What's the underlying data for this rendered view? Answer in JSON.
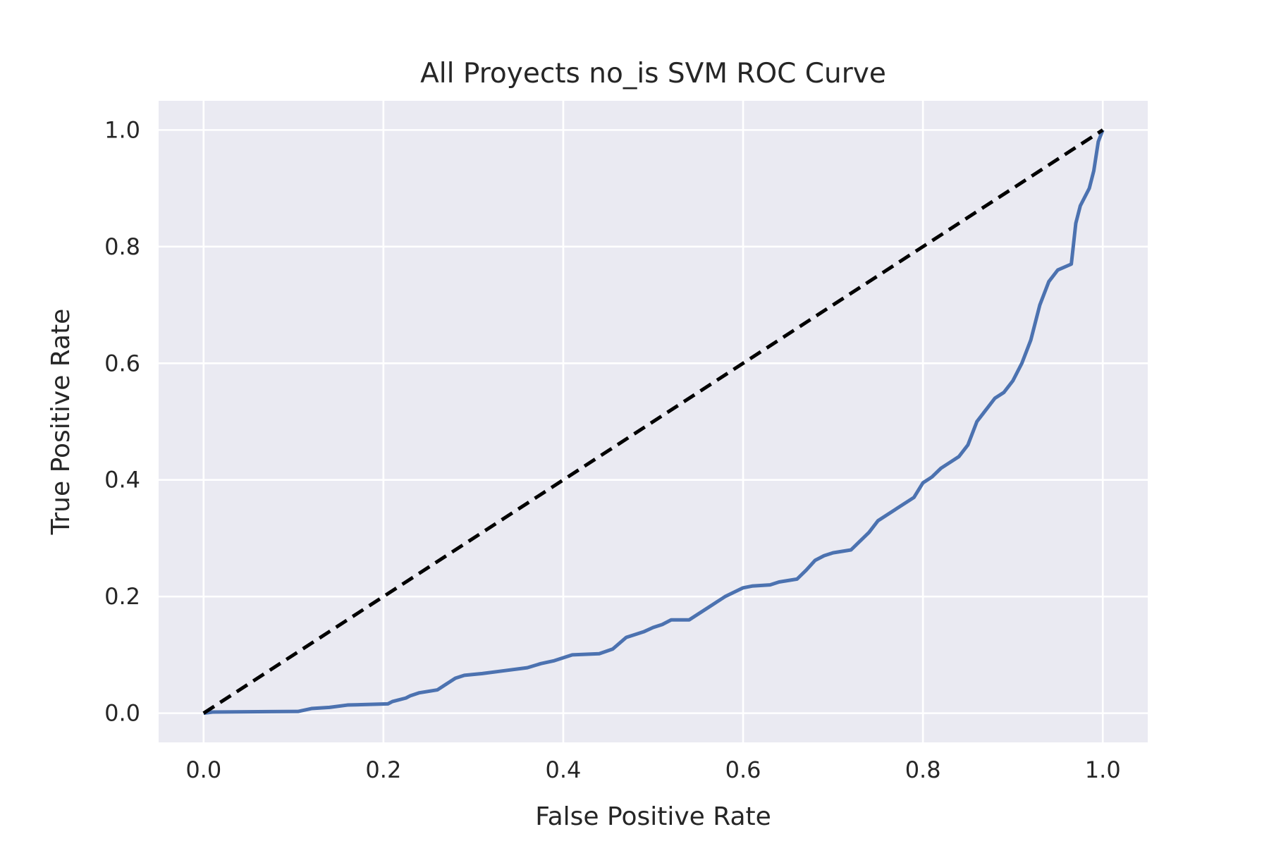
{
  "chart_data": {
    "type": "line",
    "title": "All Proyects no_is SVM ROC Curve",
    "xlabel": "False Positive Rate",
    "ylabel": "True Positive Rate",
    "xlim": [
      -0.05,
      1.05
    ],
    "ylim": [
      -0.05,
      1.05
    ],
    "xticks": [
      0.0,
      0.2,
      0.4,
      0.6,
      0.8,
      1.0
    ],
    "xtick_labels": [
      "0.0",
      "0.2",
      "0.4",
      "0.6",
      "0.8",
      "1.0"
    ],
    "yticks": [
      0.0,
      0.2,
      0.4,
      0.6,
      0.8,
      1.0
    ],
    "ytick_labels": [
      "0.0",
      "0.2",
      "0.4",
      "0.6",
      "0.8",
      "1.0"
    ],
    "grid": true,
    "series": [
      {
        "style": "solid",
        "color": "#4c72b0",
        "x": [
          0.0,
          0.01,
          0.105,
          0.12,
          0.14,
          0.16,
          0.205,
          0.21,
          0.225,
          0.23,
          0.24,
          0.26,
          0.27,
          0.28,
          0.29,
          0.31,
          0.33,
          0.36,
          0.375,
          0.39,
          0.4,
          0.41,
          0.44,
          0.455,
          0.47,
          0.48,
          0.49,
          0.5,
          0.51,
          0.52,
          0.54,
          0.55,
          0.56,
          0.57,
          0.58,
          0.6,
          0.61,
          0.63,
          0.64,
          0.66,
          0.67,
          0.68,
          0.69,
          0.7,
          0.72,
          0.73,
          0.74,
          0.75,
          0.77,
          0.79,
          0.8,
          0.81,
          0.82,
          0.83,
          0.84,
          0.85,
          0.86,
          0.87,
          0.88,
          0.89,
          0.9,
          0.91,
          0.92,
          0.93,
          0.935,
          0.94,
          0.95,
          0.965,
          0.97,
          0.975,
          0.985,
          0.99,
          0.995,
          1.0
        ],
        "y": [
          0.0,
          0.002,
          0.003,
          0.008,
          0.01,
          0.014,
          0.016,
          0.02,
          0.026,
          0.03,
          0.035,
          0.04,
          0.05,
          0.06,
          0.065,
          0.068,
          0.072,
          0.078,
          0.085,
          0.09,
          0.095,
          0.1,
          0.102,
          0.11,
          0.13,
          0.135,
          0.14,
          0.147,
          0.152,
          0.16,
          0.16,
          0.17,
          0.18,
          0.19,
          0.2,
          0.215,
          0.218,
          0.22,
          0.225,
          0.23,
          0.245,
          0.262,
          0.27,
          0.275,
          0.28,
          0.295,
          0.31,
          0.33,
          0.35,
          0.37,
          0.395,
          0.405,
          0.42,
          0.43,
          0.44,
          0.46,
          0.5,
          0.52,
          0.54,
          0.55,
          0.57,
          0.6,
          0.64,
          0.7,
          0.72,
          0.74,
          0.76,
          0.77,
          0.84,
          0.87,
          0.9,
          0.93,
          0.98,
          1.0
        ]
      },
      {
        "style": "dashed",
        "color": "#000000",
        "x": [
          0.0,
          1.0
        ],
        "y": [
          0.0,
          1.0
        ]
      }
    ]
  }
}
